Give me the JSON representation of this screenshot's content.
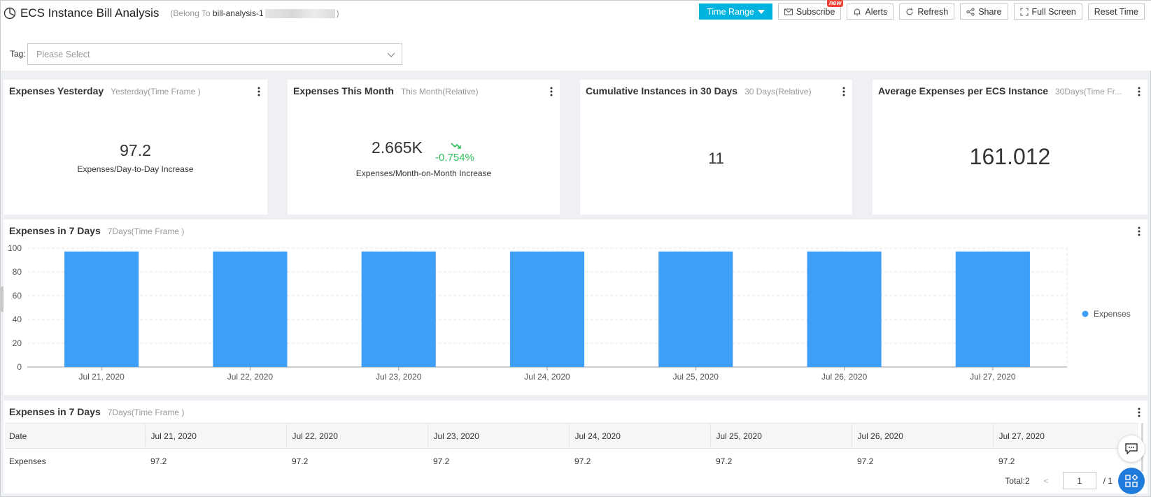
{
  "header": {
    "title": "ECS Instance Bill Analysis",
    "belong_prefix": "(Belong To ",
    "project": "bill-analysis-1",
    "belong_suffix": ")"
  },
  "toolbar": {
    "time_range": "Time Range",
    "subscribe": "Subscribe",
    "new_badge": "new",
    "alerts": "Alerts",
    "refresh": "Refresh",
    "share": "Share",
    "full_screen": "Full Screen",
    "reset_time": "Reset Time"
  },
  "filter": {
    "tag_label": "Tag:",
    "placeholder": "Please Select"
  },
  "cards": [
    {
      "title": "Expenses Yesterday",
      "sub": "Yesterday(Time Frame )",
      "value": "97.2",
      "desc": "Expenses/Day-to-Day Increase"
    },
    {
      "title": "Expenses This Month",
      "sub": "This Month(Relative)",
      "value": "2.665K",
      "change": "-0.754%",
      "desc": "Expenses/Month-on-Month Increase"
    },
    {
      "title": "Cumulative Instances in 30 Days",
      "sub": "30 Days(Relative)",
      "value": "11"
    },
    {
      "title": "Average Expenses per ECS Instance",
      "sub": "30Days(Time Fr...",
      "value": "161.012"
    }
  ],
  "chart_panel": {
    "title": "Expenses in 7 Days",
    "sub": "7Days(Time Frame )"
  },
  "chart_data": {
    "type": "bar",
    "title": "",
    "xlabel": "",
    "ylabel": "",
    "categories": [
      "Jul 21, 2020",
      "Jul 22, 2020",
      "Jul 23, 2020",
      "Jul 24, 2020",
      "Jul 25, 2020",
      "Jul 26, 2020",
      "Jul 27, 2020"
    ],
    "series": [
      {
        "name": "Expenses",
        "values": [
          97.2,
          97.2,
          97.2,
          97.2,
          97.2,
          97.2,
          97.2
        ]
      }
    ],
    "ylim": [
      0,
      100
    ],
    "yticks": [
      0,
      20,
      40,
      60,
      80,
      100
    ],
    "grid": true,
    "legend": "right",
    "bar_color": "#3d9ff8"
  },
  "table_panel": {
    "title": "Expenses in 7 Days",
    "sub": "7Days(Time Frame )",
    "header": [
      "Date",
      "Jul 21, 2020",
      "Jul 22, 2020",
      "Jul 23, 2020",
      "Jul 24, 2020",
      "Jul 25, 2020",
      "Jul 26, 2020",
      "Jul 27, 2020"
    ],
    "rows": [
      [
        "Expenses",
        "97.2",
        "97.2",
        "97.2",
        "97.2",
        "97.2",
        "97.2",
        "97.2"
      ]
    ]
  },
  "pager": {
    "total": "Total:2",
    "prev": "<",
    "page": "1",
    "of": "/ 1"
  },
  "colors": {
    "accent": "#00b4e0",
    "bar": "#3d9ff8",
    "positive": "#2dbf5a"
  }
}
